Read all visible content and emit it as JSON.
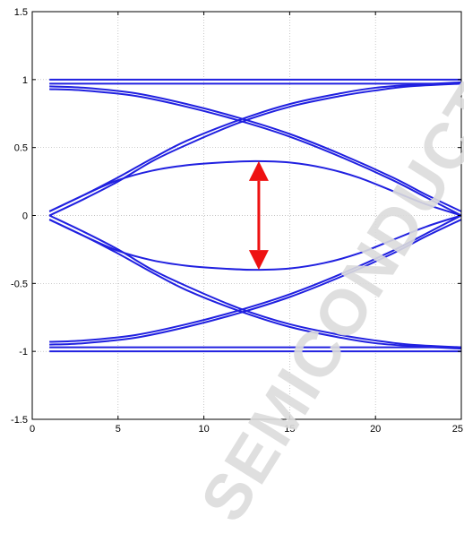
{
  "watermark": "SEMICONDUCTOR",
  "chart_data": {
    "type": "line",
    "title": "",
    "xlabel": "",
    "ylabel": "",
    "xlim": [
      0,
      25
    ],
    "ylim": [
      -1.5,
      1.5
    ],
    "x_ticks": [
      0,
      5,
      10,
      15,
      20,
      25
    ],
    "y_ticks": [
      -1.5,
      -1,
      -0.5,
      0,
      0.5,
      1,
      1.5
    ],
    "x_tick_labels": [
      "0",
      "5",
      "10",
      "15",
      "20",
      "25"
    ],
    "y_tick_labels": [
      "-1.5",
      "-1",
      "-0.5",
      "0",
      "0.5",
      "1",
      "1.5"
    ],
    "grid": true,
    "line_color": "#2020e0",
    "arrow_color": "#ee1111",
    "series": [
      {
        "x": [
          1,
          25
        ],
        "y": [
          1.0,
          1.0
        ]
      },
      {
        "x": [
          1,
          25
        ],
        "y": [
          0.97,
          0.97
        ]
      },
      {
        "x": [
          1,
          25
        ],
        "y": [
          -1.0,
          -1.0
        ]
      },
      {
        "x": [
          1,
          25
        ],
        "y": [
          -0.97,
          -0.97
        ]
      },
      {
        "x": [
          1,
          3,
          6,
          9,
          12,
          15,
          18,
          21,
          23,
          25
        ],
        "y": [
          0.95,
          0.94,
          0.9,
          0.82,
          0.72,
          0.6,
          0.45,
          0.28,
          0.15,
          0.03
        ]
      },
      {
        "x": [
          1,
          3,
          6,
          9,
          12,
          15,
          18,
          21,
          23,
          25
        ],
        "y": [
          0.93,
          0.92,
          0.88,
          0.8,
          0.7,
          0.58,
          0.43,
          0.26,
          0.13,
          0.0
        ]
      },
      {
        "x": [
          1,
          3,
          6,
          9,
          12,
          15,
          18,
          21,
          23,
          25
        ],
        "y": [
          -0.95,
          -0.94,
          -0.9,
          -0.82,
          -0.72,
          -0.6,
          -0.45,
          -0.28,
          -0.15,
          -0.03
        ]
      },
      {
        "x": [
          1,
          3,
          6,
          9,
          12,
          15,
          18,
          21,
          23,
          25
        ],
        "y": [
          -0.93,
          -0.92,
          -0.88,
          -0.8,
          -0.7,
          -0.58,
          -0.43,
          -0.26,
          -0.13,
          0.0
        ]
      },
      {
        "x": [
          1,
          3,
          5,
          7,
          9,
          12,
          15,
          18,
          20,
          22,
          25
        ],
        "y": [
          0.0,
          0.12,
          0.25,
          0.4,
          0.52,
          0.68,
          0.8,
          0.88,
          0.92,
          0.95,
          0.97
        ]
      },
      {
        "x": [
          1,
          3,
          5,
          7,
          9,
          12,
          15,
          18,
          20,
          22,
          25
        ],
        "y": [
          0.03,
          0.15,
          0.28,
          0.42,
          0.55,
          0.7,
          0.82,
          0.9,
          0.94,
          0.96,
          0.98
        ]
      },
      {
        "x": [
          1,
          3,
          5,
          7,
          9,
          12,
          15,
          18,
          20,
          22,
          25
        ],
        "y": [
          0.0,
          -0.12,
          -0.25,
          -0.4,
          -0.52,
          -0.68,
          -0.8,
          -0.88,
          -0.92,
          -0.95,
          -0.97
        ]
      },
      {
        "x": [
          1,
          3,
          5,
          7,
          9,
          12,
          15,
          18,
          20,
          22,
          25
        ],
        "y": [
          -0.03,
          -0.15,
          -0.28,
          -0.42,
          -0.55,
          -0.7,
          -0.82,
          -0.9,
          -0.94,
          -0.96,
          -0.98
        ]
      },
      {
        "x": [
          1,
          3,
          5,
          7,
          9,
          11,
          13,
          15,
          17,
          19,
          21,
          23,
          25
        ],
        "y": [
          0.03,
          0.15,
          0.26,
          0.33,
          0.37,
          0.39,
          0.4,
          0.39,
          0.35,
          0.28,
          0.18,
          0.08,
          0.0
        ]
      },
      {
        "x": [
          1,
          3,
          5,
          7,
          9,
          11,
          13,
          15,
          17,
          19,
          21,
          23,
          25
        ],
        "y": [
          -0.03,
          -0.15,
          -0.26,
          -0.33,
          -0.37,
          -0.39,
          -0.4,
          -0.39,
          -0.35,
          -0.28,
          -0.18,
          -0.08,
          0.0
        ]
      }
    ],
    "annotations": [
      {
        "type": "double-arrow",
        "x": 13.2,
        "y_from": -0.4,
        "y_to": 0.4
      }
    ]
  }
}
